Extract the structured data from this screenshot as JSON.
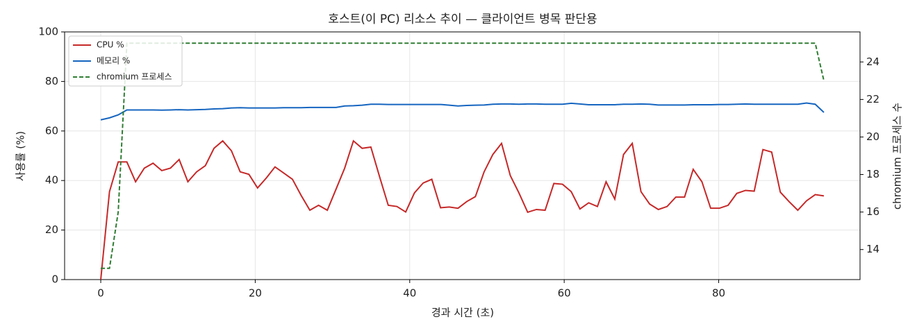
{
  "chart_data": {
    "type": "line",
    "title": "호스트(이 PC) 리소스 추이 — 클라이언트 병목 판단용",
    "x_label": "경과 시간 (초)",
    "y_label": "사용률 (%)",
    "y2_label": "chromium 프로세스 수",
    "x": [
      0,
      1.13,
      2.26,
      3.38,
      4.51,
      5.64,
      6.77,
      7.9,
      9.02,
      10.15,
      11.28,
      12.41,
      13.54,
      14.66,
      15.79,
      16.92,
      18.05,
      19.18,
      20.3,
      21.43,
      22.56,
      23.69,
      24.82,
      25.94,
      27.07,
      28.2,
      29.33,
      30.46,
      31.58,
      32.71,
      33.84,
      34.97,
      36.1,
      37.22,
      38.35,
      39.48,
      40.61,
      41.74,
      42.86,
      43.99,
      45.12,
      46.25,
      47.38,
      48.5,
      49.63,
      50.76,
      51.89,
      53.02,
      54.14,
      55.27,
      56.4,
      57.53,
      58.66,
      59.78,
      60.91,
      62.04,
      63.17,
      64.3,
      65.42,
      66.55,
      67.68,
      68.81,
      69.94,
      71.06,
      72.19,
      73.32,
      74.45,
      75.58,
      76.7,
      77.83,
      78.96,
      80.09,
      81.22,
      82.34,
      83.47,
      84.6,
      85.73,
      86.86,
      87.98,
      89.11,
      90.24,
      91.37,
      92.5,
      93.62
    ],
    "series": [
      {
        "name": "CPU %",
        "color": "#c62828",
        "dash": false,
        "values": [
          0,
          35.5,
          47.5,
          47.5,
          39.5,
          45,
          47,
          44,
          45,
          48.5,
          39.5,
          43.5,
          46,
          53,
          56,
          52,
          43.5,
          42.5,
          37,
          41,
          45.5,
          43,
          40.5,
          34,
          28,
          30,
          28,
          36.5,
          45,
          56,
          53,
          53.5,
          41.5,
          30,
          29.5,
          27.3,
          35,
          39,
          40.5,
          29,
          29.3,
          28.8,
          31.5,
          33.5,
          43.5,
          50.5,
          55,
          42,
          35,
          27.2,
          28.3,
          28,
          38.8,
          38.5,
          35.5,
          28.5,
          31,
          29.5,
          39.5,
          32.5,
          50.5,
          55,
          35.5,
          30.5,
          28.3,
          29.5,
          33.3,
          33.3,
          44.5,
          39.5,
          28.8,
          28.8,
          30,
          34.8,
          36,
          35.7,
          52.5,
          51.5,
          35.3,
          31.5,
          28,
          31.8,
          34.3,
          33.8
        ]
      },
      {
        "name": "메모리 %",
        "color": "#1565c0",
        "dash": false,
        "values": [
          64.5,
          65.3,
          66.5,
          68.5,
          68.5,
          68.5,
          68.5,
          68.4,
          68.5,
          68.6,
          68.5,
          68.6,
          68.7,
          68.9,
          69,
          69.3,
          69.4,
          69.3,
          69.3,
          69.3,
          69.3,
          69.4,
          69.4,
          69.4,
          69.5,
          69.5,
          69.5,
          69.5,
          70.1,
          70.2,
          70.4,
          70.8,
          70.8,
          70.7,
          70.7,
          70.7,
          70.7,
          70.7,
          70.7,
          70.7,
          70.4,
          70.1,
          70.3,
          70.4,
          70.5,
          70.8,
          70.9,
          70.9,
          70.8,
          70.9,
          70.9,
          70.8,
          70.8,
          70.8,
          71.2,
          70.9,
          70.6,
          70.6,
          70.6,
          70.6,
          70.8,
          70.8,
          70.9,
          70.8,
          70.5,
          70.5,
          70.5,
          70.5,
          70.6,
          70.6,
          70.6,
          70.7,
          70.7,
          70.8,
          70.9,
          70.8,
          70.8,
          70.8,
          70.8,
          70.8,
          70.8,
          71.3,
          70.8,
          67.5
        ]
      },
      {
        "name": "chromium 프로세스",
        "color": "#2e7d32",
        "dash": true,
        "axis": "y2",
        "values": [
          13,
          13,
          16,
          25,
          25,
          25,
          25,
          25,
          25,
          25,
          25,
          25,
          25,
          25,
          25,
          25,
          25,
          25,
          25,
          25,
          25,
          25,
          25,
          25,
          25,
          25,
          25,
          25,
          25,
          25,
          25,
          25,
          25,
          25,
          25,
          25,
          25,
          25,
          25,
          25,
          25,
          25,
          25,
          25,
          25,
          25,
          25,
          25,
          25,
          25,
          25,
          25,
          25,
          25,
          25,
          25,
          25,
          25,
          25,
          25,
          25,
          25,
          25,
          25,
          25,
          25,
          25,
          25,
          25,
          25,
          25,
          25,
          25,
          25,
          25,
          25,
          25,
          25,
          25,
          25,
          25,
          25,
          25,
          23
        ]
      }
    ],
    "xlim": [
      -4.68,
      98.3
    ],
    "xticks": [
      0,
      20,
      40,
      60,
      80
    ],
    "ylim": [
      0,
      100
    ],
    "yticks": [
      0,
      20,
      40,
      60,
      80,
      100
    ],
    "y2lim": [
      12.4,
      25.6
    ],
    "y2ticks": [
      14,
      16,
      18,
      20,
      22,
      24
    ],
    "grid": true,
    "legend": "upper-left"
  }
}
